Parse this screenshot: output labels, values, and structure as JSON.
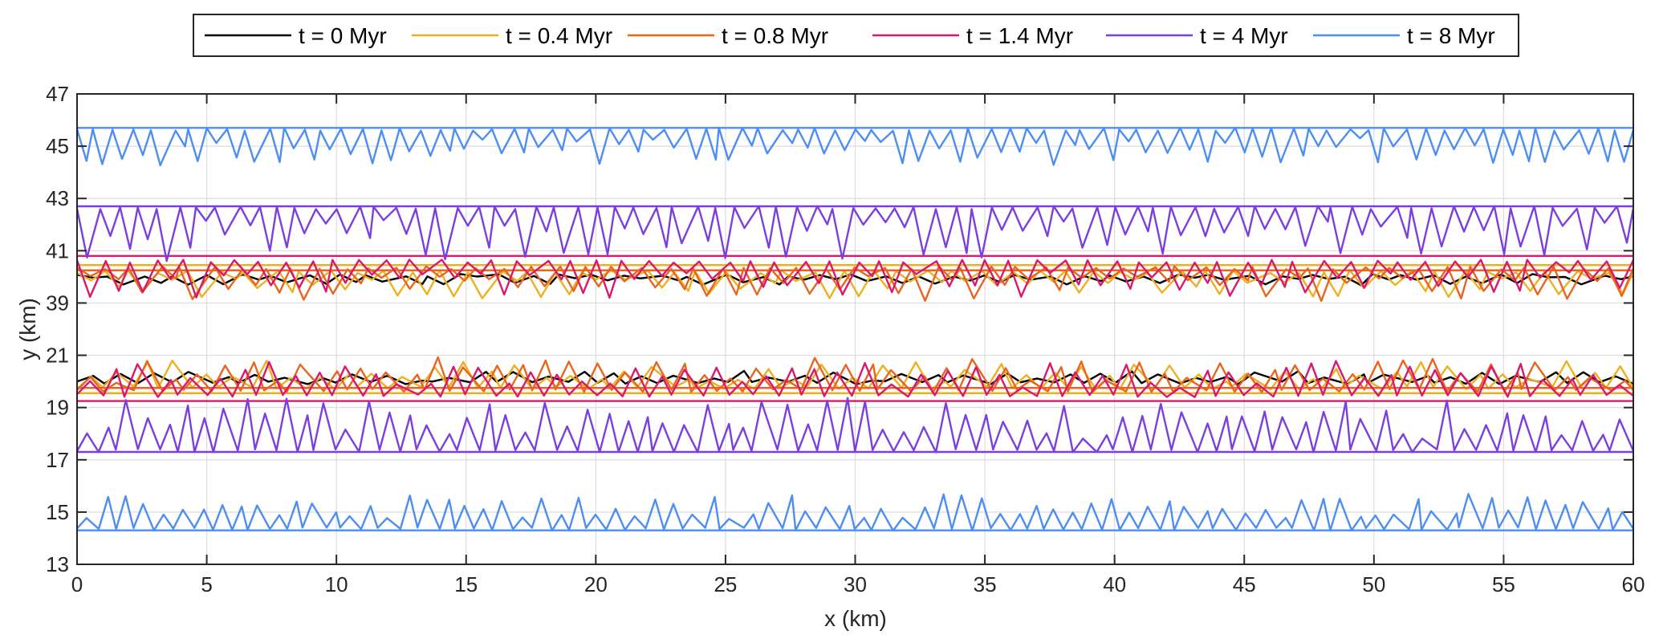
{
  "chart_data": {
    "type": "line",
    "xlabel": "x (km)",
    "ylabel": "y (km)",
    "xlim": [
      0,
      60
    ],
    "x_ticks": [
      0,
      5,
      10,
      15,
      20,
      25,
      30,
      35,
      40,
      45,
      50,
      55,
      60
    ],
    "y_tick_labels": [
      "13",
      "15",
      "17",
      "19",
      "21",
      "39",
      "41",
      "43",
      "45",
      "47"
    ],
    "y_axis_note": "broken axis: 21 to 39 km omitted",
    "grid": true,
    "legend_position": "top",
    "series": [
      {
        "name": "t = 0 Myr",
        "color": "#000000",
        "bands": [
          {
            "base": 19.95,
            "amp": 0.45,
            "dir": 1,
            "n": 48,
            "seed": 11
          },
          {
            "base": 40.05,
            "amp": 0.35,
            "dir": -1,
            "n": 48,
            "seed": 12
          }
        ]
      },
      {
        "name": "t = 0.4 Myr",
        "color": "#EDB120",
        "flat": [
          19.55,
          40.45
        ],
        "bands": [
          {
            "base": 19.75,
            "amp": 1.05,
            "dir": 1,
            "n": 55,
            "seed": 21
          },
          {
            "base": 40.2,
            "amp": 1.0,
            "dir": -1,
            "n": 55,
            "seed": 22
          }
        ]
      },
      {
        "name": "t = 0.8 Myr",
        "color": "#E8651F",
        "flat": [
          19.75,
          40.25
        ],
        "bands": [
          {
            "base": 19.65,
            "amp": 1.25,
            "dir": 1,
            "n": 58,
            "seed": 31
          },
          {
            "base": 40.35,
            "amp": 1.25,
            "dir": -1,
            "n": 58,
            "seed": 32
          }
        ]
      },
      {
        "name": "t = 1.4 Myr",
        "color": "#D9186F",
        "flat": [
          19.25,
          40.8
        ],
        "bands": [
          {
            "base": 19.45,
            "amp": 1.35,
            "dir": 1,
            "n": 60,
            "seed": 41
          },
          {
            "base": 40.6,
            "amp": 1.45,
            "dir": -1,
            "n": 60,
            "seed": 42
          }
        ]
      },
      {
        "name": "t = 4 Myr",
        "color": "#7B3FE0",
        "flat": [
          17.3,
          42.7
        ],
        "bands": [
          {
            "base": 17.35,
            "amp": 2.0,
            "dir": 1,
            "n": 78,
            "seed": 51
          },
          {
            "base": 42.65,
            "amp": 2.0,
            "dir": -1,
            "n": 78,
            "seed": 52
          }
        ]
      },
      {
        "name": "t = 8 Myr",
        "color": "#4D8EF2",
        "flat": [
          14.3,
          45.7
        ],
        "bands": [
          {
            "base": 14.35,
            "amp": 1.3,
            "dir": 1,
            "n": 82,
            "seed": 61
          },
          {
            "base": 45.65,
            "amp": 1.35,
            "dir": -1,
            "n": 82,
            "seed": 62
          }
        ]
      }
    ]
  }
}
